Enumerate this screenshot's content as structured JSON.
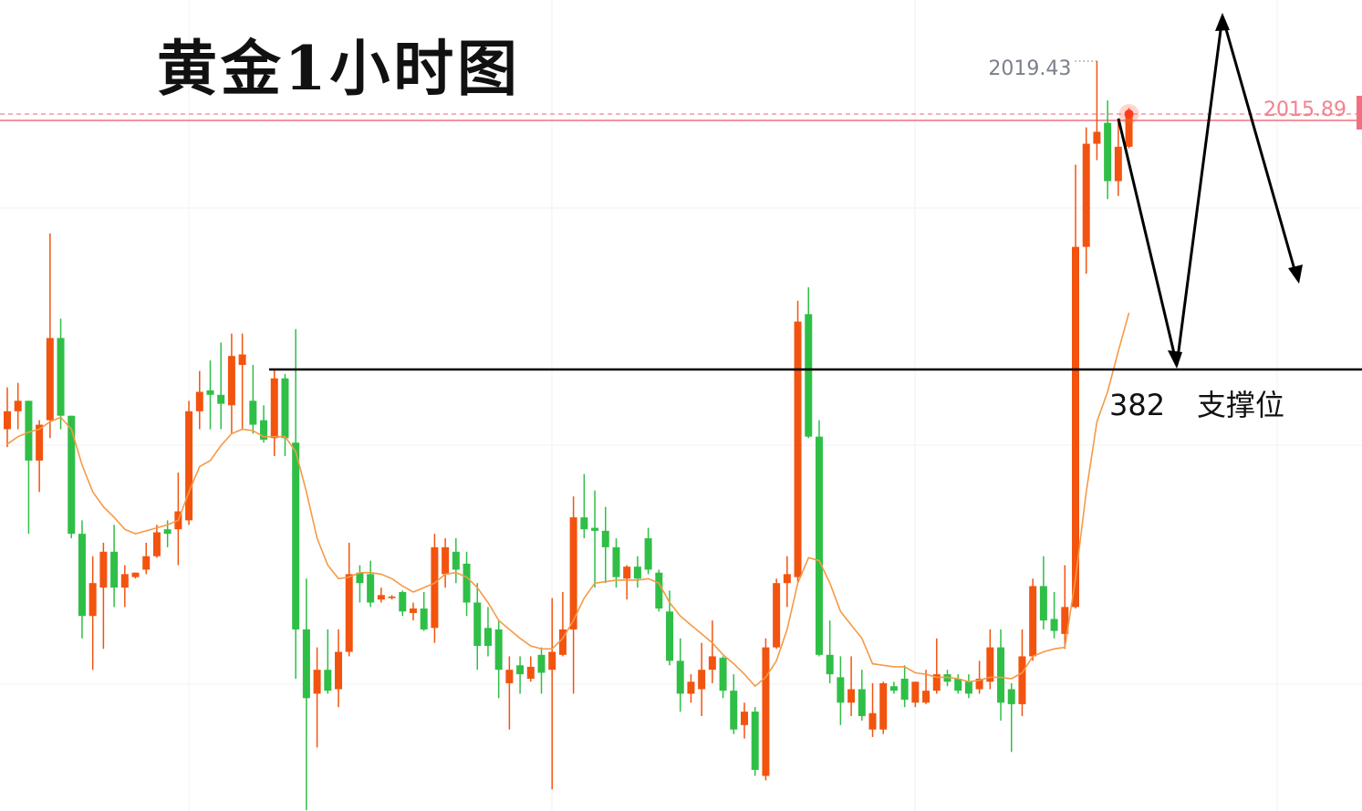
{
  "chart_data": {
    "type": "candlestick",
    "title": "黄金1小时图",
    "annotations": [
      "382",
      "支撑位"
    ],
    "up_color": "#f2540f",
    "down_color": "#2fbf47",
    "ylim": [
      1969.25,
      2023.52
    ],
    "candles": [
      [
        1994.8,
        1997.6,
        1993.6,
        1996.0
      ],
      [
        1996.0,
        1997.9,
        1994.8,
        1996.7
      ],
      [
        1996.7,
        1996.7,
        1987.8,
        1992.7
      ],
      [
        1992.7,
        1995.4,
        1990.6,
        1995.1
      ],
      [
        1995.4,
        2007.9,
        1994.2,
        2000.9
      ],
      [
        2000.9,
        2002.2,
        1994.8,
        1995.7
      ],
      [
        1995.7,
        1995.7,
        1987.5,
        1987.8
      ],
      [
        1987.8,
        1988.7,
        1980.8,
        1982.3
      ],
      [
        1982.3,
        1986.3,
        1978.7,
        1984.5
      ],
      [
        1984.2,
        1987.2,
        1980.1,
        1986.6
      ],
      [
        1986.6,
        1988.4,
        1982.9,
        1984.2
      ],
      [
        1984.2,
        1985.7,
        1982.9,
        1985.1
      ],
      [
        1984.9,
        1985.2,
        1984.8,
        1985.2
      ],
      [
        1985.4,
        1987.2,
        1985.1,
        1986.3
      ],
      [
        1986.3,
        1988.4,
        1986.2,
        1987.9
      ],
      [
        1988.1,
        1988.7,
        1986.9,
        1987.8
      ],
      [
        1988.1,
        1991.9,
        1985.7,
        1989.3
      ],
      [
        1988.7,
        1996.7,
        1988.4,
        1996.0
      ],
      [
        1996.0,
        1998.7,
        1994.8,
        1997.3
      ],
      [
        1997.4,
        1999.4,
        1994.8,
        1997.1
      ],
      [
        1997.1,
        2000.6,
        1994.8,
        1996.5
      ],
      [
        1996.4,
        2001.2,
        1994.5,
        1999.7
      ],
      [
        1999.1,
        2001.2,
        1994.8,
        1999.8
      ],
      [
        1996.7,
        1999.1,
        1994.5,
        1995.1
      ],
      [
        1995.4,
        1996.4,
        1993.9,
        1994.1
      ],
      [
        1994.2,
        1998.8,
        1993.0,
        1998.2
      ],
      [
        1998.2,
        1998.5,
        1993.0,
        1994.2
      ],
      [
        1993.9,
        2001.5,
        1978.1,
        1981.4
      ],
      [
        1981.4,
        1984.8,
        1969.3,
        1976.8
      ],
      [
        1977.1,
        1980.2,
        1973.5,
        1978.7
      ],
      [
        1978.7,
        1981.4,
        1977.1,
        1977.3
      ],
      [
        1977.4,
        1981.4,
        1976.2,
        1979.9
      ],
      [
        1979.9,
        1987.2,
        1979.6,
        1985.1
      ],
      [
        1985.2,
        1985.7,
        1983.2,
        1984.5
      ],
      [
        1985.1,
        1986.0,
        1982.9,
        1983.2
      ],
      [
        1983.4,
        1984.2,
        1983.2,
        1983.7
      ],
      [
        1983.5,
        1983.7,
        1983.4,
        1983.6
      ],
      [
        1983.9,
        1984.0,
        1982.3,
        1982.6
      ],
      [
        1982.5,
        1983.2,
        1982.0,
        1982.8
      ],
      [
        1982.8,
        1983.9,
        1981.3,
        1981.4
      ],
      [
        1981.5,
        1987.8,
        1980.5,
        1986.9
      ],
      [
        1985.1,
        1987.5,
        1984.2,
        1986.9
      ],
      [
        1986.6,
        1987.5,
        1984.5,
        1985.4
      ],
      [
        1985.8,
        1986.6,
        1982.3,
        1983.2
      ],
      [
        1983.2,
        1984.5,
        1978.7,
        1980.3
      ],
      [
        1981.5,
        1982.9,
        1979.6,
        1980.3
      ],
      [
        1981.4,
        1982.0,
        1976.8,
        1978.7
      ],
      [
        1977.8,
        1979.6,
        1974.7,
        1978.7
      ],
      [
        1979.0,
        1979.6,
        1977.1,
        1978.4
      ],
      [
        1978.1,
        1979.6,
        1977.9,
        1978.9
      ],
      [
        1979.7,
        1980.2,
        1977.1,
        1978.5
      ],
      [
        1978.7,
        1983.5,
        1970.7,
        1979.9
      ],
      [
        1979.7,
        1983.9,
        1979.6,
        1981.4
      ],
      [
        1981.4,
        1990.3,
        1977.1,
        1988.9
      ],
      [
        1988.9,
        1991.8,
        1987.5,
        1988.1
      ],
      [
        1988.2,
        1990.7,
        1984.2,
        1988.0
      ],
      [
        1988.0,
        1989.6,
        1984.5,
        1986.9
      ],
      [
        1986.9,
        1987.5,
        1984.2,
        1984.9
      ],
      [
        1984.8,
        1985.7,
        1983.4,
        1985.6
      ],
      [
        1985.6,
        1986.3,
        1984.2,
        1984.8
      ],
      [
        1987.5,
        1988.2,
        1985.1,
        1985.4
      ],
      [
        1985.2,
        1985.4,
        1982.6,
        1982.8
      ],
      [
        1982.6,
        1984.0,
        1979.0,
        1979.3
      ],
      [
        1979.3,
        1980.8,
        1975.9,
        1977.1
      ],
      [
        1977.1,
        1978.4,
        1976.5,
        1977.9
      ],
      [
        1977.4,
        1980.5,
        1975.6,
        1978.7
      ],
      [
        1978.7,
        1982.0,
        1977.8,
        1979.6
      ],
      [
        1979.5,
        1979.6,
        1976.8,
        1977.3
      ],
      [
        1977.3,
        1978.4,
        1974.4,
        1974.7
      ],
      [
        1975.0,
        1976.5,
        1974.1,
        1975.9
      ],
      [
        1975.9,
        1976.2,
        1971.6,
        1972.0
      ],
      [
        1971.6,
        1980.8,
        1971.3,
        1980.2
      ],
      [
        1980.2,
        1984.8,
        1980.1,
        1984.5
      ],
      [
        1984.5,
        1986.3,
        1982.9,
        1985.1
      ],
      [
        1984.9,
        2003.4,
        1984.5,
        2002.0
      ],
      [
        2002.5,
        2004.3,
        1994.2,
        1994.3
      ],
      [
        1994.3,
        1995.4,
        1979.6,
        1979.7
      ],
      [
        1979.7,
        1982.0,
        1977.8,
        1978.4
      ],
      [
        1978.2,
        1979.6,
        1975.0,
        1976.5
      ],
      [
        1976.5,
        1979.6,
        1975.6,
        1977.4
      ],
      [
        1977.4,
        1978.7,
        1975.3,
        1975.6
      ],
      [
        1974.7,
        1977.8,
        1974.2,
        1975.8
      ],
      [
        1974.7,
        1977.9,
        1974.4,
        1977.8
      ],
      [
        1977.6,
        1977.9,
        1977.1,
        1977.3
      ],
      [
        1978.1,
        1979.0,
        1976.2,
        1976.7
      ],
      [
        1976.5,
        1977.9,
        1976.2,
        1977.9
      ],
      [
        1976.5,
        1978.7,
        1976.4,
        1977.3
      ],
      [
        1977.3,
        1980.8,
        1977.1,
        1978.4
      ],
      [
        1978.4,
        1978.7,
        1977.6,
        1977.9
      ],
      [
        1978.1,
        1978.4,
        1977.1,
        1977.3
      ],
      [
        1977.9,
        1978.4,
        1976.8,
        1977.1
      ],
      [
        1977.4,
        1979.3,
        1977.1,
        1978.1
      ],
      [
        1977.9,
        1981.4,
        1977.4,
        1980.2
      ],
      [
        1980.2,
        1981.4,
        1975.3,
        1976.5
      ],
      [
        1977.4,
        1977.8,
        1973.2,
        1976.4
      ],
      [
        1976.4,
        1981.4,
        1975.6,
        1979.6
      ],
      [
        1979.6,
        1984.8,
        1979.3,
        1984.3
      ],
      [
        1984.3,
        1986.3,
        1981.4,
        1982.0
      ],
      [
        1982.1,
        1983.9,
        1980.8,
        1981.3
      ],
      [
        1981.1,
        1985.7,
        1980.1,
        1982.9
      ],
      [
        1982.9,
        2012.5,
        1982.8,
        2007.0
      ],
      [
        2007.0,
        2015.0,
        2005.2,
        2013.9
      ],
      [
        2013.9,
        2019.43,
        2012.8,
        2014.7
      ],
      [
        2015.3,
        2016.8,
        2010.2,
        2011.4
      ],
      [
        2011.4,
        2015.6,
        2010.4,
        2013.7
      ],
      [
        2013.7,
        2016.3,
        2013.6,
        2015.89
      ]
    ],
    "ma": {
      "color": "#f59a45",
      "values": [
        1993.8,
        1994.3,
        1994.6,
        1994.8,
        1995.3,
        1995.6,
        1994.8,
        1992.4,
        1990.6,
        1989.6,
        1988.9,
        1988.1,
        1987.8,
        1988.0,
        1988.2,
        1988.4,
        1988.7,
        1990.6,
        1992.3,
        1992.7,
        1993.7,
        1994.5,
        1994.8,
        1994.7,
        1994.3,
        1994.3,
        1994.3,
        1993.3,
        1990.6,
        1987.5,
        1985.7,
        1984.8,
        1984.9,
        1985.2,
        1985.2,
        1985.1,
        1984.8,
        1984.3,
        1983.9,
        1984.2,
        1984.5,
        1985.1,
        1985.2,
        1984.9,
        1984.2,
        1983.2,
        1982.0,
        1981.4,
        1980.8,
        1980.3,
        1980.1,
        1980.1,
        1980.8,
        1982.0,
        1983.5,
        1984.5,
        1984.6,
        1984.7,
        1984.7,
        1984.7,
        1984.8,
        1984.5,
        1983.2,
        1982.3,
        1981.7,
        1981.1,
        1980.5,
        1979.7,
        1979.1,
        1978.4,
        1977.6,
        1978.2,
        1979.3,
        1981.4,
        1984.5,
        1986.2,
        1986.0,
        1984.5,
        1982.6,
        1981.7,
        1980.8,
        1979.1,
        1979.0,
        1978.9,
        1978.9,
        1978.5,
        1978.4,
        1978.2,
        1978.2,
        1978.1,
        1977.9,
        1978.0,
        1978.2,
        1978.2,
        1978.1,
        1978.5,
        1979.6,
        1979.9,
        1980.1,
        1980.2,
        1984.8,
        1990.6,
        1995.3,
        1997.3,
        2000.0,
        2002.6
      ]
    },
    "last_price_color": "#f2828f"
  }
}
